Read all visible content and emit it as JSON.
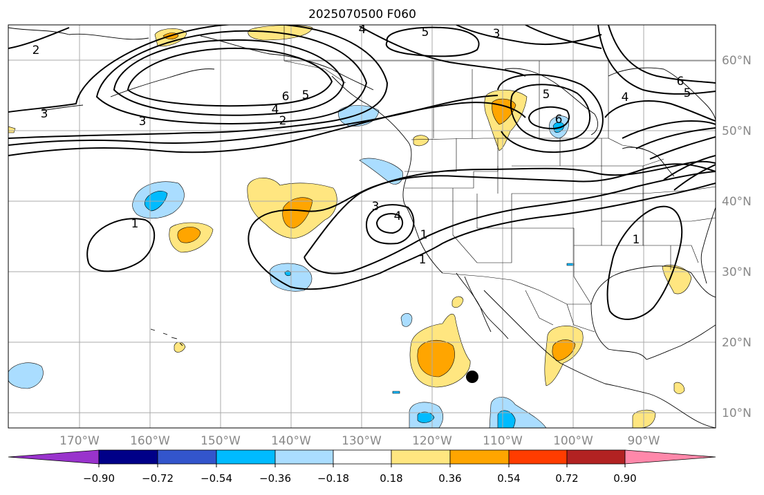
{
  "title": "2025070500 F060",
  "lon_labels": [
    "170°W",
    "160°W",
    "150°W",
    "140°W",
    "130°W",
    "120°W",
    "110°W",
    "100°W",
    "90°W"
  ],
  "lat_labels": [
    "60°N",
    "50°N",
    "40°N",
    "30°N",
    "20°N",
    "10°N"
  ],
  "contour_labels": [
    "1",
    "1",
    "1",
    "1",
    "2",
    "2",
    "3",
    "3",
    "3",
    "3",
    "4",
    "4",
    "4",
    "4",
    "5",
    "5",
    "5",
    "5",
    "6",
    "6",
    "6"
  ],
  "colorbar": {
    "ticks": [
      "−0.90",
      "−0.72",
      "−0.54",
      "−0.36",
      "−0.18",
      "0.18",
      "0.36",
      "0.54",
      "0.72",
      "0.90"
    ],
    "colors": {
      "under": "#9933cc",
      "bins": [
        "#000088",
        "#3355cc",
        "#00bbff",
        "#aaddff",
        "#ffffff",
        "#ffe680",
        "#ffa500",
        "#ff3c00",
        "#b22222"
      ],
      "over": "#ff88aa"
    }
  },
  "markers": [
    {
      "type": "black-dot",
      "lon": -114.5,
      "lat": 15.3
    }
  ]
}
